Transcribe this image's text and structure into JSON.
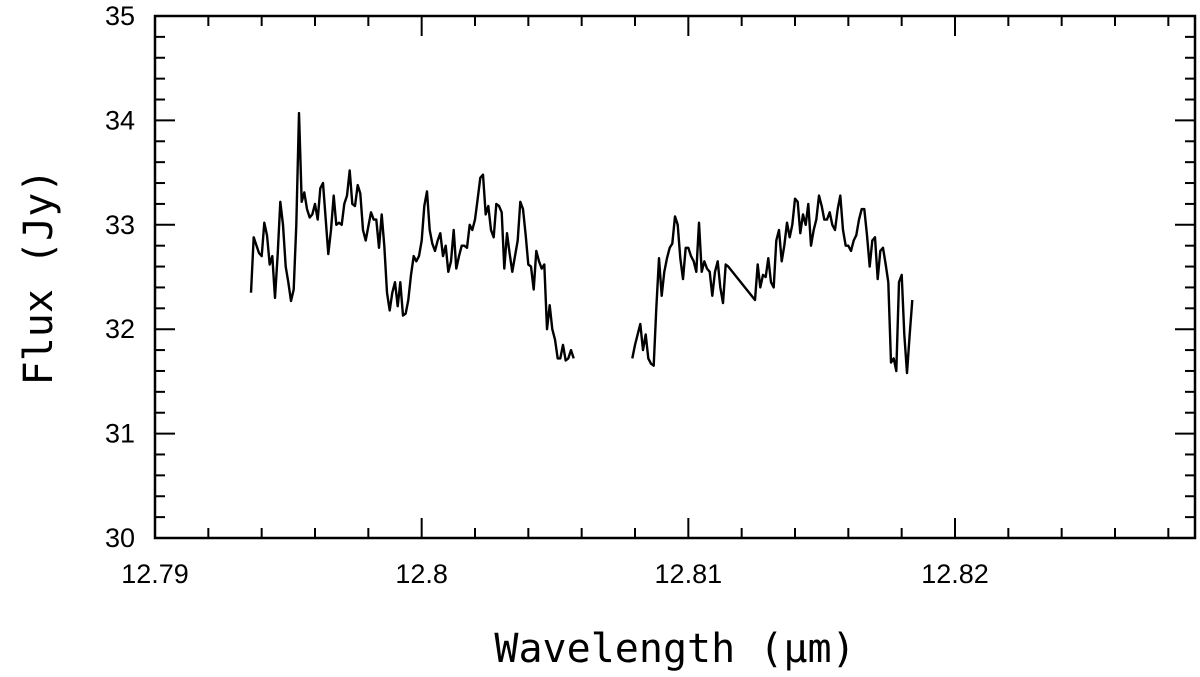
{
  "chart_data": {
    "type": "line",
    "title": "",
    "xlabel": "Wavelength (μm)",
    "ylabel": "Flux (Jy)",
    "xlim": [
      12.79,
      12.829
    ],
    "ylim": [
      30,
      35
    ],
    "x_ticks": [
      {
        "value": 12.79,
        "label": "12.79"
      },
      {
        "value": 12.8,
        "label": "12.8"
      },
      {
        "value": 12.81,
        "label": "12.81"
      },
      {
        "value": 12.82,
        "label": "12.82"
      }
    ],
    "y_ticks": [
      {
        "value": 30,
        "label": "30"
      },
      {
        "value": 31,
        "label": "31"
      },
      {
        "value": 32,
        "label": "32"
      },
      {
        "value": 33,
        "label": "33"
      },
      {
        "value": 34,
        "label": "34"
      },
      {
        "value": 35,
        "label": "35"
      }
    ],
    "x_minor_step": 0.002,
    "y_minor_step": 0.2,
    "grid": false,
    "series": [
      {
        "segments": [
          [
            [
              12.7936,
              32.35
            ],
            [
              12.7937,
              32.88
            ],
            [
              12.7939,
              32.73
            ],
            [
              12.794,
              32.7
            ],
            [
              12.7941,
              33.02
            ],
            [
              12.7942,
              32.9
            ],
            [
              12.7943,
              32.62
            ],
            [
              12.7944,
              32.7
            ],
            [
              12.7945,
              32.3
            ],
            [
              12.7946,
              32.72
            ],
            [
              12.7947,
              33.22
            ],
            [
              12.7948,
              33.0
            ],
            [
              12.7949,
              32.6
            ],
            [
              12.795,
              32.45
            ],
            [
              12.7951,
              32.27
            ],
            [
              12.7952,
              32.38
            ],
            [
              12.7953,
              33.0
            ],
            [
              12.7954,
              34.07
            ],
            [
              12.7955,
              33.22
            ],
            [
              12.7956,
              33.31
            ],
            [
              12.7957,
              33.15
            ],
            [
              12.7958,
              33.07
            ],
            [
              12.7959,
              33.1
            ],
            [
              12.796,
              33.2
            ],
            [
              12.7961,
              33.05
            ],
            [
              12.7962,
              33.35
            ],
            [
              12.7963,
              33.4
            ],
            [
              12.7965,
              32.72
            ],
            [
              12.7966,
              32.95
            ],
            [
              12.7967,
              33.28
            ],
            [
              12.7968,
              33.0
            ],
            [
              12.7969,
              33.02
            ],
            [
              12.797,
              33.0
            ],
            [
              12.7971,
              33.2
            ],
            [
              12.7972,
              33.28
            ],
            [
              12.7973,
              33.52
            ],
            [
              12.7974,
              33.2
            ],
            [
              12.7975,
              33.18
            ],
            [
              12.7976,
              33.38
            ],
            [
              12.7977,
              33.3
            ],
            [
              12.7978,
              32.95
            ],
            [
              12.7979,
              32.85
            ],
            [
              12.7981,
              33.12
            ],
            [
              12.7982,
              33.05
            ],
            [
              12.7983,
              33.05
            ],
            [
              12.7984,
              32.78
            ],
            [
              12.7985,
              33.1
            ],
            [
              12.7986,
              32.8
            ],
            [
              12.7987,
              32.35
            ],
            [
              12.7988,
              32.18
            ],
            [
              12.7989,
              32.35
            ],
            [
              12.799,
              32.45
            ],
            [
              12.7991,
              32.22
            ],
            [
              12.7992,
              32.45
            ],
            [
              12.7993,
              32.13
            ],
            [
              12.7994,
              32.15
            ],
            [
              12.7995,
              32.28
            ],
            [
              12.7996,
              32.52
            ],
            [
              12.7997,
              32.7
            ],
            [
              12.7998,
              32.65
            ],
            [
              12.7999,
              32.7
            ],
            [
              12.8,
              32.85
            ],
            [
              12.8001,
              33.18
            ],
            [
              12.8002,
              33.32
            ],
            [
              12.8003,
              32.95
            ],
            [
              12.8004,
              32.82
            ],
            [
              12.8005,
              32.75
            ],
            [
              12.8006,
              32.85
            ],
            [
              12.8007,
              32.92
            ],
            [
              12.8008,
              32.7
            ],
            [
              12.8009,
              32.8
            ],
            [
              12.801,
              32.55
            ],
            [
              12.8011,
              32.65
            ],
            [
              12.8012,
              32.95
            ],
            [
              12.8013,
              32.58
            ],
            [
              12.8014,
              32.7
            ],
            [
              12.8015,
              32.8
            ],
            [
              12.8016,
              32.8
            ],
            [
              12.8017,
              32.78
            ],
            [
              12.8018,
              33.0
            ],
            [
              12.8019,
              32.95
            ],
            [
              12.802,
              33.05
            ],
            [
              12.8021,
              33.25
            ],
            [
              12.8022,
              33.45
            ],
            [
              12.8023,
              33.48
            ],
            [
              12.8024,
              33.1
            ],
            [
              12.8025,
              33.18
            ],
            [
              12.8026,
              32.95
            ],
            [
              12.8027,
              32.88
            ],
            [
              12.8028,
              33.2
            ],
            [
              12.8029,
              33.18
            ],
            [
              12.803,
              33.12
            ],
            [
              12.8031,
              32.58
            ],
            [
              12.8032,
              32.92
            ],
            [
              12.8033,
              32.72
            ],
            [
              12.8034,
              32.55
            ],
            [
              12.8035,
              32.7
            ],
            [
              12.8036,
              32.85
            ],
            [
              12.8037,
              33.22
            ],
            [
              12.8038,
              33.15
            ],
            [
              12.8039,
              32.9
            ],
            [
              12.804,
              32.62
            ],
            [
              12.8041,
              32.6
            ],
            [
              12.8042,
              32.38
            ],
            [
              12.8043,
              32.75
            ],
            [
              12.8044,
              32.65
            ],
            [
              12.8045,
              32.58
            ],
            [
              12.8046,
              32.62
            ],
            [
              12.8047,
              32.0
            ],
            [
              12.8048,
              32.23
            ],
            [
              12.8049,
              32.0
            ],
            [
              12.805,
              31.9
            ],
            [
              12.8051,
              31.72
            ],
            [
              12.8052,
              31.72
            ],
            [
              12.8053,
              31.85
            ],
            [
              12.8054,
              31.7
            ],
            [
              12.8055,
              31.72
            ],
            [
              12.8056,
              31.8
            ],
            [
              12.8057,
              31.72
            ]
          ],
          [
            [
              12.8079,
              31.72
            ],
            [
              12.808,
              31.85
            ],
            [
              12.8082,
              32.05
            ],
            [
              12.8083,
              31.8
            ],
            [
              12.8084,
              31.95
            ],
            [
              12.8085,
              31.72
            ],
            [
              12.8086,
              31.67
            ],
            [
              12.8087,
              31.65
            ],
            [
              12.8088,
              32.2
            ],
            [
              12.8089,
              32.68
            ],
            [
              12.809,
              32.32
            ],
            [
              12.8091,
              32.55
            ],
            [
              12.8092,
              32.68
            ],
            [
              12.8093,
              32.78
            ],
            [
              12.8094,
              32.82
            ],
            [
              12.8095,
              33.08
            ],
            [
              12.8096,
              33.0
            ],
            [
              12.8097,
              32.68
            ],
            [
              12.8098,
              32.48
            ],
            [
              12.8099,
              32.78
            ],
            [
              12.81,
              32.78
            ],
            [
              12.8101,
              32.7
            ],
            [
              12.8102,
              32.65
            ],
            [
              12.8103,
              32.55
            ],
            [
              12.8104,
              33.02
            ],
            [
              12.8105,
              32.55
            ],
            [
              12.8106,
              32.65
            ],
            [
              12.8107,
              32.58
            ],
            [
              12.8108,
              32.55
            ],
            [
              12.8109,
              32.32
            ],
            [
              12.811,
              32.55
            ],
            [
              12.8111,
              32.65
            ],
            [
              12.8112,
              32.4
            ],
            [
              12.8113,
              32.25
            ],
            [
              12.8114,
              32.62
            ],
            [
              12.8115,
              32.6
            ],
            [
              12.8125,
              32.28
            ],
            [
              12.8126,
              32.62
            ],
            [
              12.8127,
              32.4
            ],
            [
              12.8128,
              32.52
            ],
            [
              12.8129,
              32.5
            ],
            [
              12.813,
              32.68
            ],
            [
              12.8131,
              32.45
            ],
            [
              12.8132,
              32.4
            ],
            [
              12.8133,
              32.85
            ],
            [
              12.8134,
              32.95
            ],
            [
              12.8135,
              32.65
            ],
            [
              12.8136,
              32.8
            ],
            [
              12.8137,
              33.02
            ],
            [
              12.8138,
              32.88
            ],
            [
              12.8139,
              33.0
            ],
            [
              12.814,
              33.25
            ],
            [
              12.8141,
              33.22
            ],
            [
              12.8142,
              32.92
            ],
            [
              12.8143,
              33.1
            ],
            [
              12.8144,
              33.0
            ],
            [
              12.8145,
              33.2
            ],
            [
              12.8146,
              32.8
            ],
            [
              12.8147,
              32.95
            ],
            [
              12.8148,
              33.05
            ],
            [
              12.8149,
              33.28
            ],
            [
              12.815,
              33.18
            ],
            [
              12.8151,
              33.05
            ],
            [
              12.8152,
              33.05
            ],
            [
              12.8153,
              33.12
            ],
            [
              12.8154,
              33.0
            ],
            [
              12.8155,
              32.95
            ],
            [
              12.8156,
              33.15
            ],
            [
              12.8157,
              33.28
            ],
            [
              12.8158,
              32.95
            ],
            [
              12.8159,
              32.8
            ],
            [
              12.816,
              32.8
            ],
            [
              12.8161,
              32.75
            ],
            [
              12.8162,
              32.85
            ],
            [
              12.8163,
              32.9
            ],
            [
              12.8164,
              33.05
            ],
            [
              12.8165,
              33.15
            ],
            [
              12.8166,
              33.15
            ],
            [
              12.8167,
              32.9
            ],
            [
              12.8168,
              32.6
            ],
            [
              12.8169,
              32.85
            ],
            [
              12.817,
              32.88
            ],
            [
              12.8171,
              32.48
            ],
            [
              12.8172,
              32.75
            ],
            [
              12.8173,
              32.78
            ],
            [
              12.8174,
              32.62
            ],
            [
              12.8175,
              32.45
            ],
            [
              12.8176,
              31.68
            ],
            [
              12.8177,
              31.72
            ],
            [
              12.8178,
              31.6
            ],
            [
              12.8179,
              32.45
            ],
            [
              12.818,
              32.52
            ],
            [
              12.8181,
              31.95
            ],
            [
              12.8182,
              31.58
            ],
            [
              12.8183,
              31.95
            ],
            [
              12.8184,
              32.28
            ]
          ]
        ]
      }
    ]
  }
}
